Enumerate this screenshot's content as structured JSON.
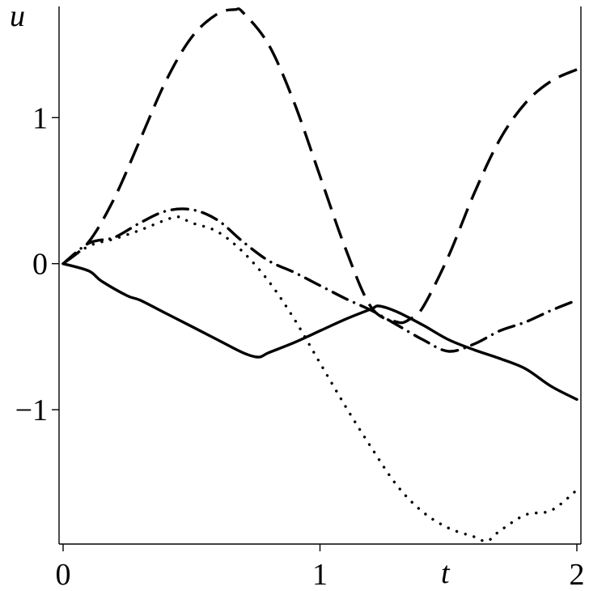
{
  "chart_data": {
    "type": "line",
    "xlabel": "t",
    "ylabel": "u",
    "xlim": [
      0,
      2
    ],
    "ylim": [
      -1.92,
      1.75
    ],
    "x_ticks": [
      0,
      1,
      2
    ],
    "x_tick_labels": [
      "0",
      "1",
      "2"
    ],
    "y_ticks": [
      1,
      0,
      -1
    ],
    "y_tick_labels": [
      "1",
      "0",
      "−1"
    ],
    "grid": false,
    "legend": "none",
    "line_color": "#000000",
    "series": [
      {
        "style": "solid",
        "x": [
          0,
          0.1,
          0.15,
          0.25,
          0.3,
          0.4,
          0.5,
          0.6,
          0.7,
          0.76,
          0.8,
          0.9,
          1.0,
          1.1,
          1.2,
          1.23,
          1.3,
          1.4,
          1.5,
          1.6,
          1.7,
          1.8,
          1.9,
          2.0
        ],
        "y": [
          0,
          -0.05,
          -0.12,
          -0.22,
          -0.25,
          -0.34,
          -0.43,
          -0.52,
          -0.61,
          -0.64,
          -0.61,
          -0.54,
          -0.46,
          -0.38,
          -0.31,
          -0.29,
          -0.33,
          -0.42,
          -0.52,
          -0.59,
          -0.65,
          -0.72,
          -0.84,
          -0.93
        ]
      },
      {
        "style": "dashed",
        "x": [
          0,
          0.1,
          0.2,
          0.3,
          0.4,
          0.5,
          0.6,
          0.67,
          0.7,
          0.8,
          0.9,
          1.0,
          1.1,
          1.2,
          1.3,
          1.35,
          1.4,
          1.5,
          1.6,
          1.7,
          1.8,
          1.9,
          2.0
        ],
        "y": [
          0,
          0.15,
          0.45,
          0.85,
          1.25,
          1.55,
          1.71,
          1.74,
          1.72,
          1.5,
          1.1,
          0.6,
          0.1,
          -0.3,
          -0.4,
          -0.38,
          -0.3,
          0.05,
          0.48,
          0.85,
          1.1,
          1.25,
          1.33
        ]
      },
      {
        "style": "dotted",
        "x": [
          0,
          0.1,
          0.2,
          0.3,
          0.4,
          0.45,
          0.5,
          0.6,
          0.7,
          0.8,
          0.9,
          1.0,
          1.1,
          1.2,
          1.3,
          1.4,
          1.5,
          1.6,
          1.65,
          1.7,
          1.8,
          1.9,
          2.0
        ],
        "y": [
          0,
          0.12,
          0.17,
          0.23,
          0.3,
          0.32,
          0.28,
          0.22,
          0.08,
          -0.12,
          -0.38,
          -0.68,
          -0.98,
          -1.26,
          -1.52,
          -1.7,
          -1.81,
          -1.87,
          -1.9,
          -1.83,
          -1.72,
          -1.69,
          -1.55
        ]
      },
      {
        "style": "dash-dot",
        "x": [
          0,
          0.1,
          0.2,
          0.3,
          0.4,
          0.5,
          0.6,
          0.7,
          0.8,
          0.9,
          1.0,
          1.1,
          1.2,
          1.3,
          1.4,
          1.5,
          1.6,
          1.7,
          1.8,
          1.9,
          2.0
        ],
        "y": [
          0,
          0.14,
          0.18,
          0.28,
          0.36,
          0.37,
          0.3,
          0.15,
          0.02,
          -0.06,
          -0.15,
          -0.24,
          -0.32,
          -0.42,
          -0.52,
          -0.6,
          -0.55,
          -0.46,
          -0.4,
          -0.32,
          -0.25
        ]
      }
    ]
  }
}
